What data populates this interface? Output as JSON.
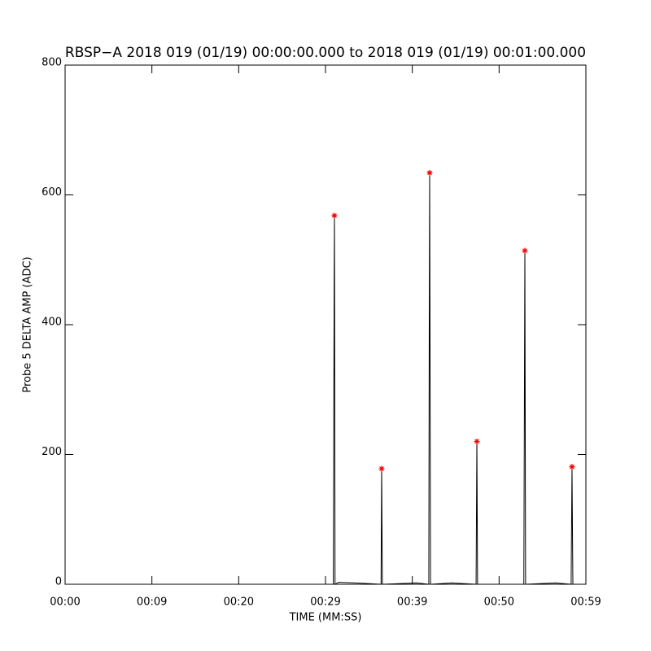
{
  "chart_data": {
    "type": "line",
    "title": "RBSP−A 2018 019 (01/19) 00:00:00.000 to 2018 019 (01/19) 00:01:00.000",
    "xlabel": "TIME (MM:SS)",
    "ylabel": "Probe 5 DELTA AMP (ADC)",
    "xlim": [
      0,
      60
    ],
    "ylim": [
      0,
      800
    ],
    "xticks": [
      {
        "value": 0,
        "label": "00:00"
      },
      {
        "value": 10,
        "label": "00:09"
      },
      {
        "value": 20,
        "label": "00:20"
      },
      {
        "value": 30,
        "label": "00:29"
      },
      {
        "value": 40,
        "label": "00:39"
      },
      {
        "value": 50,
        "label": "00:50"
      },
      {
        "value": 60,
        "label": "00:59"
      }
    ],
    "yticks": [
      0,
      200,
      400,
      600,
      800
    ],
    "series": [
      {
        "type": "line",
        "color": "#000000",
        "x": [
          0,
          30.9,
          31.0,
          31.03,
          31.1,
          31.5,
          33.5,
          36.4,
          36.47,
          36.55,
          40.5,
          41.9,
          41.95,
          42.0,
          42.1,
          44.5,
          47.35,
          47.44,
          47.52,
          52.85,
          52.97,
          53.05,
          56.5,
          58.3,
          58.4,
          58.5,
          60
        ],
        "values": [
          0,
          0,
          480,
          568,
          0,
          3,
          2,
          0,
          178,
          0,
          2,
          0,
          380,
          634,
          0,
          2,
          0,
          220,
          0,
          0,
          514,
          0,
          2,
          0,
          181,
          0,
          0
        ]
      },
      {
        "type": "scatter",
        "color": "#ff0000",
        "x": [
          31.03,
          36.47,
          42.0,
          47.44,
          52.97,
          58.4
        ],
        "values": [
          568,
          178,
          634,
          220,
          514,
          181
        ]
      }
    ]
  }
}
